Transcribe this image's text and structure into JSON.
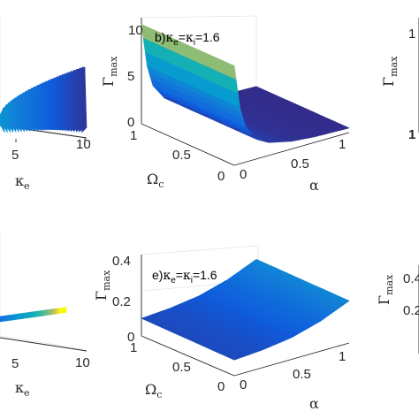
{
  "chart_data": [
    {
      "panel": "a",
      "type": "surface",
      "title": "",
      "x_ticks": [
        "5",
        "10"
      ],
      "x_label": {
        "symbol": "κ",
        "sub": "e"
      },
      "note": "partially cropped at left edge"
    },
    {
      "panel": "b",
      "type": "surface",
      "annotation": {
        "prefix": "b)",
        "kappa": "κ",
        "e": "e",
        "eq": "=",
        "i": "i",
        "val": "=1.6"
      },
      "z_label": {
        "symbol": "Γ",
        "sub": "max"
      },
      "z_ticks": [
        "0",
        "5",
        "10"
      ],
      "zlim": [
        0,
        10
      ],
      "x_label": {
        "symbol": "α"
      },
      "x_ticks": [
        "0",
        "0.5",
        "1"
      ],
      "xlim": [
        0,
        1
      ],
      "y_label": {
        "symbol": "Ω",
        "sub": "c"
      },
      "y_ticks": [
        "0",
        "0.5",
        "1"
      ],
      "ylim": [
        0,
        1
      ],
      "surface": {
        "description_values": "Gamma_max decreases with alpha; steep rise near alpha = 0",
        "alpha": [
          0.0,
          0.05,
          0.1,
          0.2,
          0.3,
          0.5,
          0.7,
          1.0
        ],
        "gamma_max": [
          9.2,
          5.0,
          3.0,
          1.5,
          0.9,
          0.4,
          0.2,
          0.1
        ]
      }
    },
    {
      "panel": "c",
      "type": "surface",
      "z_label": {
        "symbol": "Γ",
        "sub": "max"
      },
      "z_ticks": [
        "1"
      ],
      "note": "cropped at right edge"
    },
    {
      "panel": "d",
      "type": "surface",
      "x_label": {
        "symbol": "κ",
        "sub": "e"
      },
      "x_ticks": [
        "5",
        "10"
      ],
      "note": "partially cropped at left edge"
    },
    {
      "panel": "e",
      "type": "surface",
      "annotation": {
        "prefix": "e)",
        "kappa": "κ",
        "e": "e",
        "eq": "=",
        "i": "i",
        "val": "=1.6"
      },
      "z_label": {
        "symbol": "Γ",
        "sub": "max"
      },
      "z_ticks": [
        "0",
        "0.2",
        "0.4"
      ],
      "zlim": [
        0,
        0.4
      ],
      "x_label": {
        "symbol": "α"
      },
      "x_ticks": [
        "0",
        "0.5",
        "1"
      ],
      "xlim": [
        0,
        1
      ],
      "y_label": {
        "symbol": "Ω",
        "sub": "c"
      },
      "y_ticks": [
        "0",
        "0.5",
        "1"
      ],
      "ylim": [
        0,
        1
      ],
      "surface": {
        "description_values": "Gamma_max roughly flat, increasing slightly with alpha",
        "alpha": [
          0.0,
          0.25,
          0.5,
          0.75,
          1.0
        ],
        "gamma_max": [
          0.06,
          0.07,
          0.09,
          0.13,
          0.19
        ]
      }
    },
    {
      "panel": "f",
      "type": "surface",
      "z_label": {
        "symbol": "Γ",
        "sub": "max"
      },
      "z_ticks": [
        "0.4",
        "0.2"
      ],
      "note": "cropped at right edge"
    }
  ],
  "colors": {
    "colormap": "parula",
    "low": "#352a87",
    "mid": "#0fa3c7",
    "high": "#f9fb0e"
  }
}
